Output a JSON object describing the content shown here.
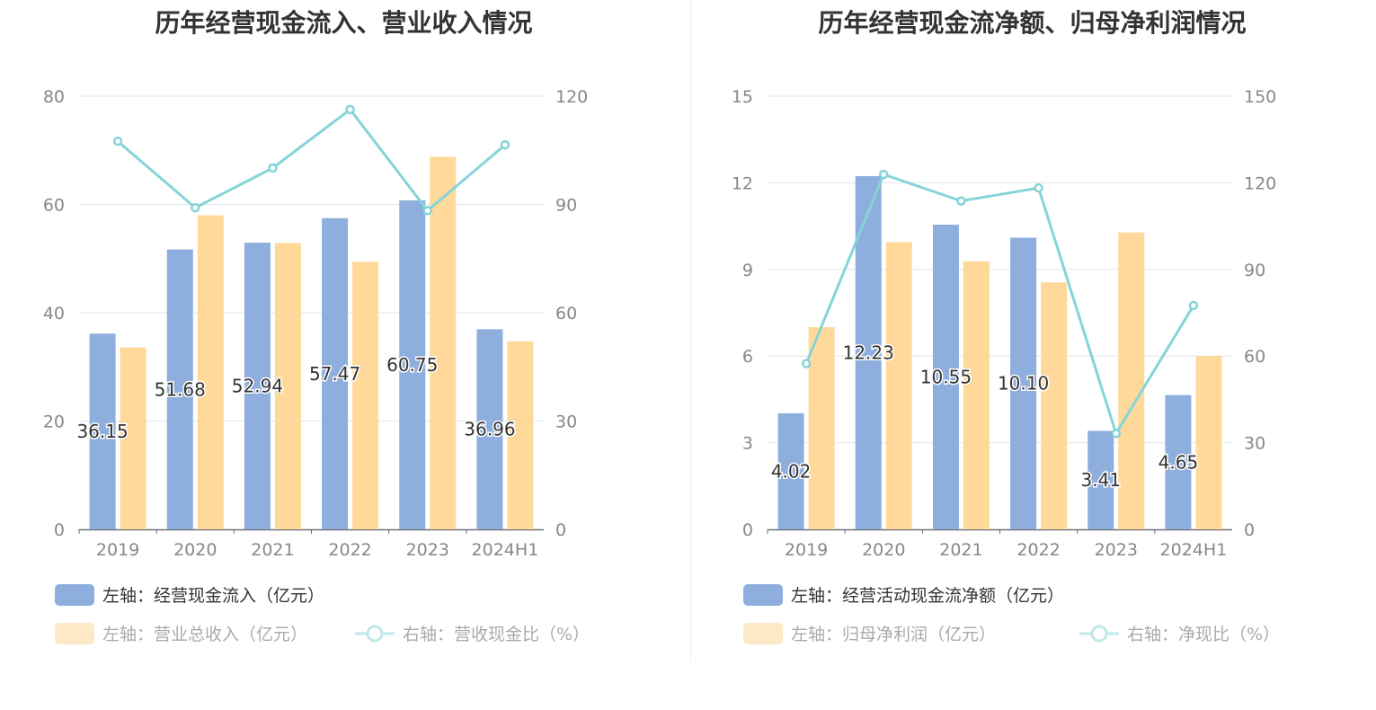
{
  "chart_data": [
    {
      "type": "bar+line",
      "title": "历年经营现金流入、营业收入情况",
      "categories": [
        "2019",
        "2020",
        "2021",
        "2022",
        "2023",
        "2024H1"
      ],
      "left_axis": {
        "ylim": [
          0,
          80
        ],
        "ticks": [
          "0",
          "20",
          "40",
          "60",
          "80"
        ]
      },
      "right_axis": {
        "ylim": [
          0,
          120
        ],
        "ticks": [
          "0",
          "30",
          "60",
          "90",
          "120"
        ]
      },
      "series": [
        {
          "name": "左轴：经营现金流入（亿元）",
          "type": "bar",
          "axis": "left",
          "values": [
            36.15,
            51.68,
            52.94,
            57.47,
            60.75,
            36.96
          ],
          "labels": [
            "36.15",
            "51.68",
            "52.94",
            "57.47",
            "60.75",
            "36.96"
          ],
          "color": "#8eaedd"
        },
        {
          "name": "左轴：营业总收入（亿元）",
          "type": "bar",
          "axis": "left",
          "values": [
            33.6,
            58.0,
            52.9,
            49.4,
            68.8,
            34.7
          ],
          "color": "#ffd99a"
        },
        {
          "name": "右轴：营收现金比（%）",
          "type": "line",
          "axis": "right",
          "values": [
            107.5,
            89.1,
            100.1,
            116.3,
            88.3,
            106.5
          ],
          "color": "#85d4d8"
        }
      ],
      "grid": true,
      "legend_position": "bottom-left"
    },
    {
      "type": "bar+line",
      "title": "历年经营现金流净额、归母净利润情况",
      "categories": [
        "2019",
        "2020",
        "2021",
        "2022",
        "2023",
        "2024H1"
      ],
      "left_axis": {
        "ylim": [
          0,
          15
        ],
        "ticks": [
          "0",
          "3",
          "6",
          "9",
          "12",
          "15"
        ]
      },
      "right_axis": {
        "ylim": [
          0,
          150
        ],
        "ticks": [
          "0",
          "30",
          "60",
          "90",
          "120",
          "150"
        ]
      },
      "series": [
        {
          "name": "左轴：经营活动现金流净额（亿元）",
          "type": "bar",
          "axis": "left",
          "values": [
            4.02,
            12.23,
            10.55,
            10.1,
            3.41,
            4.65
          ],
          "labels": [
            "4.02",
            "12.23",
            "10.55",
            "10.10",
            "3.41",
            "4.65"
          ],
          "color": "#8eaedd"
        },
        {
          "name": "左轴：归母净利润（亿元）",
          "type": "bar",
          "axis": "left",
          "values": [
            7.0,
            9.95,
            9.28,
            8.55,
            10.28,
            6.0
          ],
          "color": "#ffd99a"
        },
        {
          "name": "右轴：净现比（%）",
          "type": "line",
          "axis": "right",
          "values": [
            57.4,
            122.9,
            113.7,
            118.2,
            33.2,
            77.5
          ],
          "color": "#85d4d8"
        }
      ],
      "grid": true,
      "legend_position": "bottom-left"
    }
  ]
}
